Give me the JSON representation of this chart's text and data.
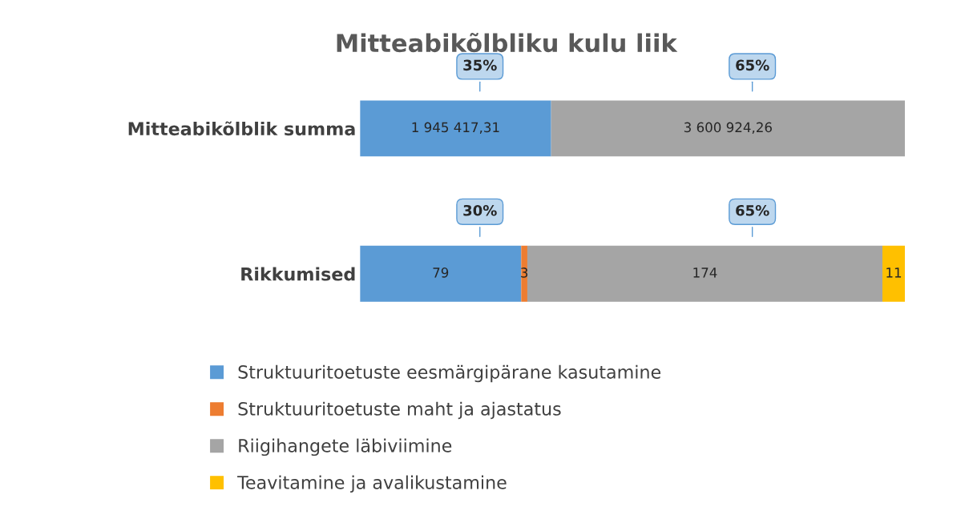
{
  "chart_data": [
    {
      "type": "bar",
      "title": "Mitteabikõlbliku kulu liik",
      "orientation": "horizontal",
      "stacked": true,
      "categories": [
        "Mitteabikõlblik summa"
      ],
      "series": [
        {
          "color": "#5b9bd5",
          "values": [
            1945417.31
          ],
          "value_labels": [
            "1 945 417,31"
          ]
        },
        {
          "color": "#a5a5a5",
          "values": [
            3600924.26
          ],
          "value_labels": [
            "3 600 924,26"
          ]
        }
      ],
      "annotations": [
        "35%",
        "65%"
      ]
    },
    {
      "type": "bar",
      "orientation": "horizontal",
      "stacked": true,
      "categories": [
        "Rikkumised"
      ],
      "series": [
        {
          "name": "Struktuuritoetuste eesmärgipärane kasutamine",
          "color": "#5b9bd5",
          "values": [
            79
          ],
          "value_labels": [
            "79"
          ]
        },
        {
          "name": "Struktuuritoetuste maht ja ajastatus",
          "color": "#ed7d31",
          "values": [
            3
          ],
          "value_labels": [
            "3"
          ]
        },
        {
          "name": "Riigihangete läbiviimine",
          "color": "#a5a5a5",
          "values": [
            174
          ],
          "value_labels": [
            "174"
          ]
        },
        {
          "name": "Teavitamine ja avalikustamine",
          "color": "#ffc000",
          "values": [
            11
          ],
          "value_labels": [
            "11"
          ]
        }
      ],
      "annotations": [
        "30%",
        "65%"
      ],
      "legend": "bottom"
    }
  ]
}
